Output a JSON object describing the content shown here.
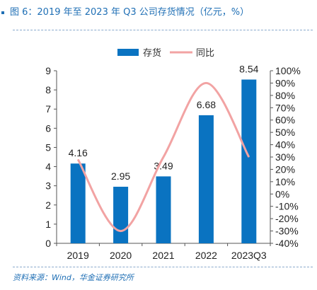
{
  "header": {
    "title": "图 6：2019 年至 2023 年 Q3 公司存货情况（亿元，%）"
  },
  "footer": {
    "source": "资料来源：Wind，华金证券研究所"
  },
  "colors": {
    "bar": "#0a73c1",
    "line": "#f2a3a3",
    "title": "#1f6fb5",
    "axis": "#555555"
  },
  "chart_data": {
    "type": "bar",
    "categories": [
      "2019",
      "2020",
      "2021",
      "2022",
      "2023Q3"
    ],
    "series": [
      {
        "name": "存货",
        "type": "bar",
        "axis": "left",
        "values": [
          4.16,
          2.95,
          3.49,
          6.68,
          8.54
        ]
      },
      {
        "name": "同比",
        "type": "line",
        "axis": "right",
        "smooth": true,
        "values": [
          28,
          -30,
          30,
          90,
          30
        ]
      }
    ],
    "data_labels": [
      "4.16",
      "2.95",
      "3.49",
      "6.68",
      "8.54"
    ],
    "y_left": {
      "min": 0,
      "max": 9,
      "ticks": [
        "0",
        "1",
        "2",
        "3",
        "4",
        "5",
        "6",
        "7",
        "8",
        "9"
      ]
    },
    "y_right": {
      "min": -40,
      "max": 100,
      "ticks": [
        "-40%",
        "-30%",
        "-20%",
        "-10%",
        "0%",
        "10%",
        "20%",
        "30%",
        "40%",
        "50%",
        "60%",
        "70%",
        "80%",
        "90%",
        "100%"
      ]
    },
    "legend": "top",
    "grid": false
  }
}
